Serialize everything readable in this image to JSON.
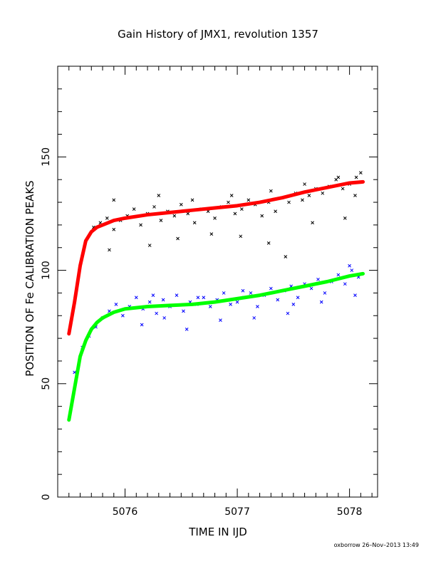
{
  "chart_data": {
    "type": "scatter",
    "title": "Gain History of JMX1, revolution 1357",
    "xlabel": "TIME IN IJD",
    "ylabel": "POSITION OF Fe CALIBRATION PEAKS",
    "xlim": [
      5075.4,
      5078.25
    ],
    "ylim": [
      0,
      190
    ],
    "x_ticks": [
      5076,
      5077,
      5078
    ],
    "y_ticks": [
      0,
      50,
      100,
      150
    ],
    "grid": false,
    "footer": "oxborrow 26–Nov–2013 13:49",
    "series": [
      {
        "role": "upper-peak-measurements",
        "marker": "cross",
        "color": "#000000",
        "x": [
          5075.72,
          5075.78,
          5075.84,
          5075.9,
          5075.96,
          5076.02,
          5076.08,
          5076.14,
          5076.2,
          5076.26,
          5076.32,
          5076.38,
          5076.44,
          5076.5,
          5076.56,
          5076.62,
          5076.68,
          5076.74,
          5076.8,
          5076.86,
          5076.92,
          5076.98,
          5077.04,
          5077.1,
          5077.16,
          5077.22,
          5077.28,
          5077.34,
          5077.4,
          5077.46,
          5077.52,
          5077.58,
          5077.64,
          5077.7,
          5077.76,
          5077.82,
          5077.88,
          5077.94,
          5078.0,
          5078.06,
          5078.1,
          5075.86,
          5076.22,
          5076.47,
          5076.77,
          5077.03,
          5077.28,
          5077.43,
          5077.67,
          5077.96,
          5075.9,
          5076.3,
          5076.6,
          5076.95,
          5077.3,
          5077.6,
          5077.9,
          5078.05
        ],
        "y": [
          119,
          121,
          123,
          118,
          122,
          124,
          127,
          120,
          125,
          128,
          122,
          126,
          124,
          129,
          125,
          121,
          127,
          126,
          123,
          128,
          130,
          125,
          127,
          131,
          129,
          124,
          130,
          126,
          132,
          130,
          134,
          131,
          133,
          136,
          134,
          137,
          140,
          136,
          138,
          141,
          143,
          109,
          111,
          114,
          116,
          115,
          112,
          106,
          121,
          123,
          131,
          133,
          131,
          133,
          135,
          138,
          141,
          133
        ]
      },
      {
        "role": "upper-peak-fit",
        "marker": "line",
        "color": "#ff0000",
        "x": [
          5075.5,
          5075.55,
          5075.6,
          5075.65,
          5075.7,
          5075.75,
          5075.8,
          5075.9,
          5076.0,
          5076.2,
          5076.4,
          5076.6,
          5076.8,
          5077.0,
          5077.2,
          5077.4,
          5077.6,
          5077.8,
          5078.0,
          5078.12
        ],
        "y": [
          72,
          86,
          102,
          113,
          117,
          119,
          120,
          122,
          123,
          124.5,
          125.5,
          126.5,
          127.5,
          128.5,
          130,
          132,
          134.5,
          136.5,
          138.5,
          139
        ]
      },
      {
        "role": "lower-peak-measurements",
        "marker": "cross",
        "color": "#0000ff",
        "x": [
          5075.55,
          5075.62,
          5075.68,
          5075.74,
          5075.8,
          5075.86,
          5075.92,
          5075.98,
          5076.04,
          5076.1,
          5076.16,
          5076.22,
          5076.28,
          5076.34,
          5076.4,
          5076.46,
          5076.52,
          5076.58,
          5076.64,
          5076.7,
          5076.76,
          5076.82,
          5076.88,
          5076.94,
          5077.0,
          5077.06,
          5077.12,
          5077.18,
          5077.24,
          5077.3,
          5077.36,
          5077.42,
          5077.48,
          5077.54,
          5077.6,
          5077.66,
          5077.72,
          5077.78,
          5077.84,
          5077.9,
          5077.96,
          5078.02,
          5078.08,
          5076.15,
          5076.35,
          5076.55,
          5076.85,
          5077.15,
          5077.45,
          5077.75,
          5078.05,
          5076.25,
          5076.65,
          5077.05,
          5077.5,
          5078.0
        ],
        "y": [
          55,
          66,
          71,
          75,
          79,
          82,
          85,
          80,
          84,
          88,
          83,
          86,
          81,
          87,
          84,
          89,
          82,
          86,
          85,
          88,
          84,
          87,
          90,
          85,
          86,
          88,
          90,
          84,
          89,
          92,
          87,
          91,
          93,
          88,
          94,
          92,
          96,
          90,
          95,
          98,
          94,
          100,
          97,
          76,
          79,
          74,
          78,
          79,
          81,
          86,
          89,
          89,
          88,
          91,
          85,
          102
        ]
      },
      {
        "role": "lower-peak-fit",
        "marker": "line",
        "color": "#00ff00",
        "x": [
          5075.5,
          5075.55,
          5075.6,
          5075.65,
          5075.7,
          5075.75,
          5075.8,
          5075.9,
          5076.0,
          5076.2,
          5076.4,
          5076.6,
          5076.8,
          5077.0,
          5077.2,
          5077.4,
          5077.6,
          5077.8,
          5078.0,
          5078.12
        ],
        "y": [
          34,
          48,
          62,
          69,
          74,
          77,
          79,
          81.5,
          83,
          84,
          84.5,
          85,
          86,
          87.5,
          89,
          91,
          93,
          95,
          97.5,
          98.5
        ]
      }
    ]
  }
}
